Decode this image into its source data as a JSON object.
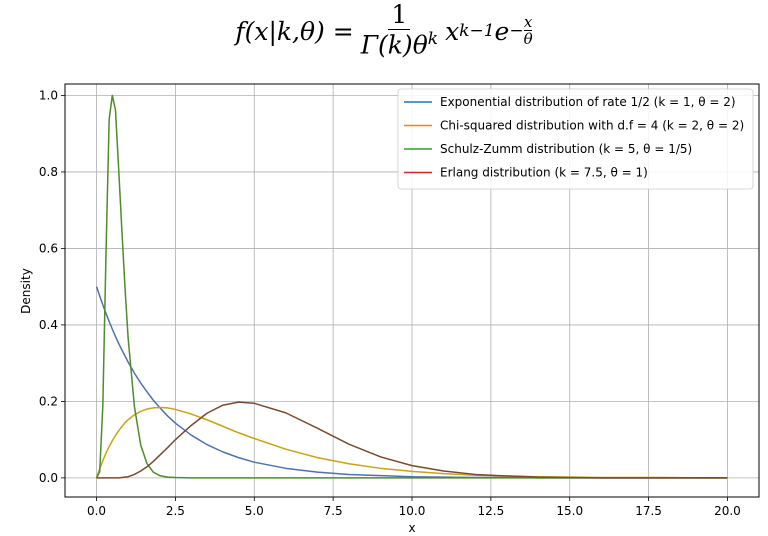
{
  "formula": {
    "lhs": "f(x|k,θ) =",
    "numerator": "1",
    "denominator": "Γ(k)θ",
    "denominator_exp": "k",
    "base": "x",
    "base_exp": "k−1",
    "e": "e",
    "exp_sign": "−",
    "exp_num": "x",
    "exp_den": "θ"
  },
  "chart_data": {
    "type": "line",
    "xlabel": "x",
    "ylabel": "Density",
    "xlim": [
      -1.0,
      21.0
    ],
    "ylim": [
      -0.05,
      1.03
    ],
    "grid": true,
    "legend_position": "top-right",
    "x_ticks": [
      "0.0",
      "2.5",
      "5.0",
      "7.5",
      "10.0",
      "12.5",
      "15.0",
      "17.5",
      "20.0"
    ],
    "y_ticks": [
      "0.0",
      "0.2",
      "0.4",
      "0.6",
      "0.8",
      "1.0"
    ],
    "x": [
      0,
      0.1,
      0.2,
      0.3,
      0.4,
      0.5,
      0.6,
      0.7,
      0.8,
      0.9,
      1.0,
      1.2,
      1.4,
      1.6,
      1.8,
      2.0,
      2.25,
      2.5,
      3.0,
      3.5,
      4.0,
      4.5,
      5.0,
      6.0,
      7.0,
      8.0,
      9.0,
      10.0,
      11.0,
      12.0,
      13.0,
      14.0,
      15.0,
      16.0,
      17.0,
      18.0,
      19.0,
      20.0
    ],
    "series": [
      {
        "name": "Exponential distribution of rate 1/2 ($k=1,\\theta=2$)",
        "legend_label": "Exponential distribution of rate 1/2 (k = 1, θ = 2)",
        "line_color": "#4c72b0",
        "legend_color": "#1f77b4",
        "values": [
          0.5,
          0.476,
          0.452,
          0.43,
          0.409,
          0.389,
          0.37,
          0.352,
          0.335,
          0.319,
          0.303,
          0.274,
          0.248,
          0.225,
          0.203,
          0.184,
          0.162,
          0.143,
          0.112,
          0.087,
          0.068,
          0.053,
          0.041,
          0.025,
          0.015,
          0.009,
          0.006,
          0.003,
          0.002,
          0.001,
          0.001,
          0.0,
          0.0,
          0.0,
          0.0,
          0.0,
          0.0,
          0.0
        ]
      },
      {
        "name": "Chi-squared distribution with d.f = 4 ($k=2,\\theta=2$)",
        "legend_label": "Chi-squared distribution with d.f = 4 (k = 2, θ = 2)",
        "line_color": "#c8a415",
        "legend_color": "#ff7f0e",
        "values": [
          0.0,
          0.024,
          0.045,
          0.065,
          0.082,
          0.097,
          0.111,
          0.123,
          0.134,
          0.144,
          0.152,
          0.165,
          0.174,
          0.18,
          0.183,
          0.184,
          0.183,
          0.179,
          0.167,
          0.152,
          0.135,
          0.118,
          0.103,
          0.075,
          0.053,
          0.037,
          0.025,
          0.017,
          0.011,
          0.007,
          0.005,
          0.003,
          0.002,
          0.001,
          0.001,
          0.001,
          0.0,
          0.0
        ]
      },
      {
        "name": "Schulz-Zumm distribution ($k=5,\\theta=1/5$)",
        "legend_label": "Schulz-Zumm distribution (k = 5, θ = 1/5)",
        "line_color": "#4f8c2a",
        "legend_color": "#2ca02c",
        "values": [
          0.0,
          0.016,
          0.19,
          0.588,
          0.938,
          1.0,
          0.962,
          0.81,
          0.652,
          0.5,
          0.367,
          0.187,
          0.086,
          0.037,
          0.015,
          0.006,
          0.002,
          0.001,
          0.0,
          0.0,
          0.0,
          0.0,
          0.0,
          0.0,
          0.0,
          0.0,
          0.0,
          0.0,
          0.0,
          0.0,
          0.0,
          0.0,
          0.0,
          0.0,
          0.0,
          0.0,
          0.0,
          0.0
        ]
      },
      {
        "name": "Erlang distribution ($k=7.5,\\theta=1$)",
        "legend_label": "Erlang distribution (k = 7.5, θ = 1)",
        "line_color": "#7b4a2e",
        "legend_color": "#d62728",
        "values": [
          0.0,
          0.0,
          0.0,
          0.0,
          0.0,
          0.0,
          0.0,
          0.0,
          0.001,
          0.002,
          0.003,
          0.009,
          0.018,
          0.029,
          0.043,
          0.059,
          0.079,
          0.1,
          0.137,
          0.169,
          0.19,
          0.198,
          0.195,
          0.17,
          0.13,
          0.088,
          0.055,
          0.032,
          0.018,
          0.009,
          0.005,
          0.002,
          0.001,
          0.0,
          0.0,
          0.0,
          0.0,
          0.0
        ]
      }
    ]
  }
}
